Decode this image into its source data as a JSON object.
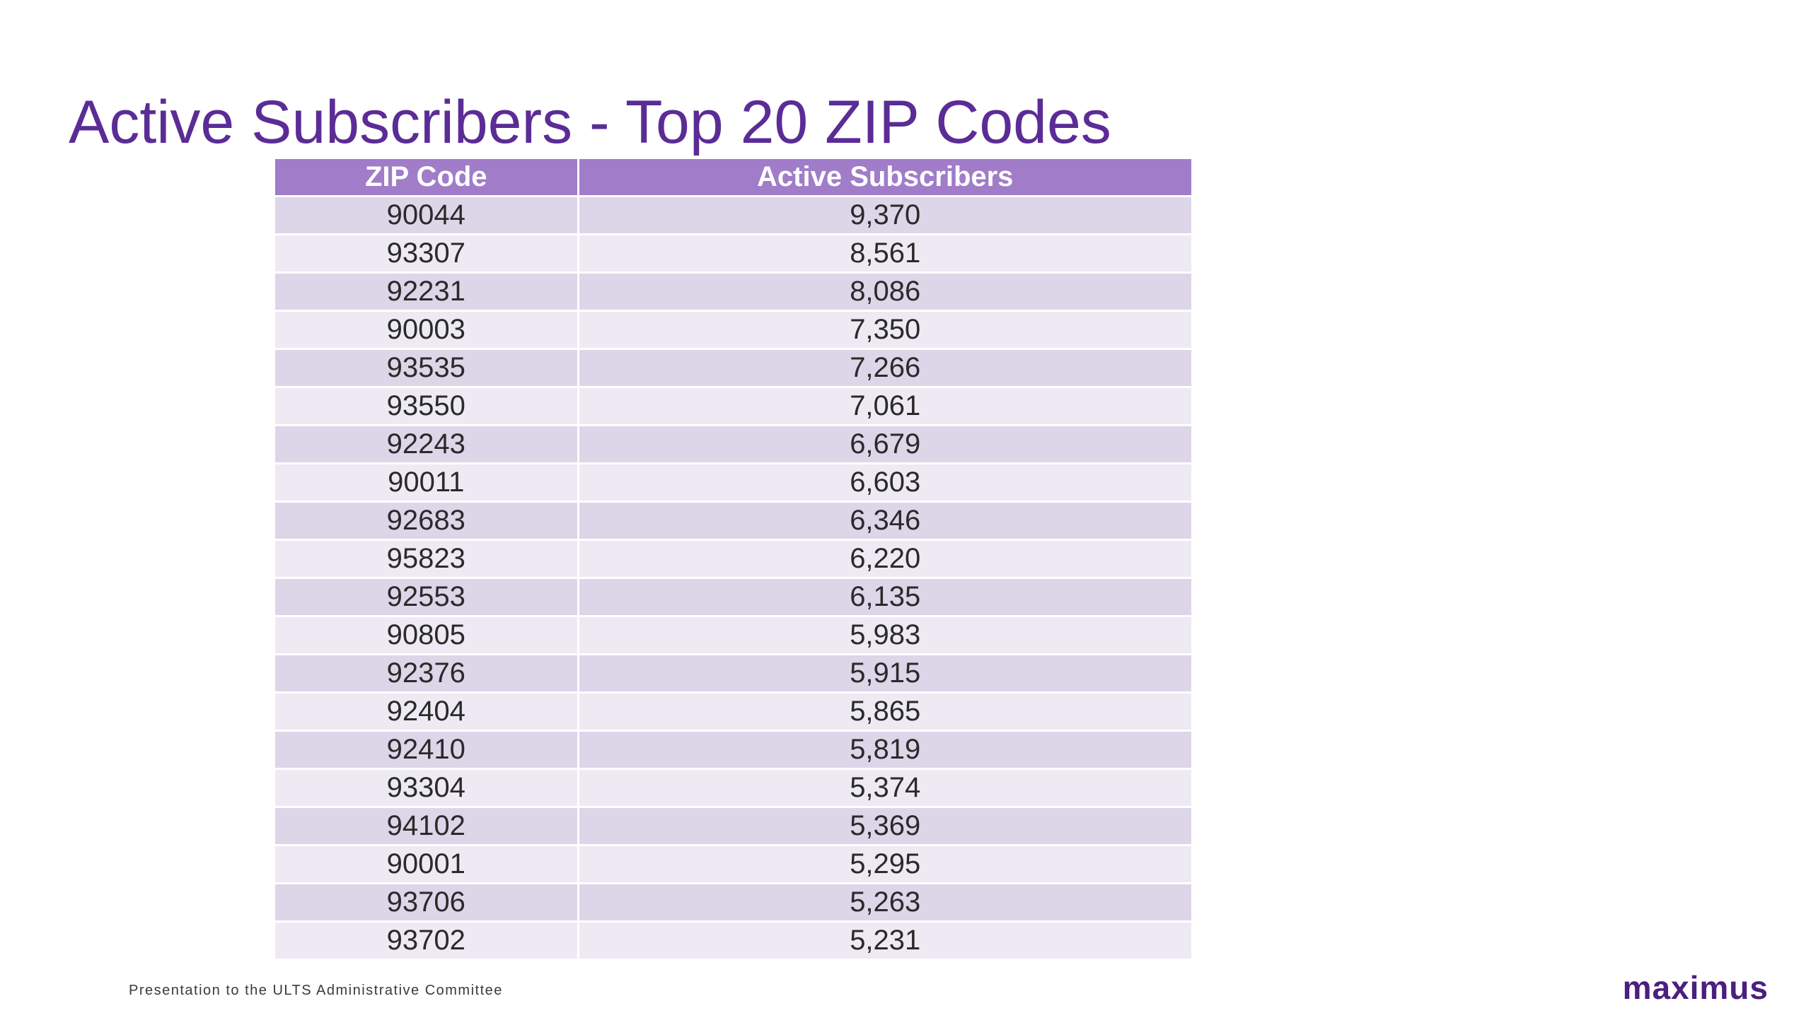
{
  "title": "Active Subscribers - Top 20 ZIP Codes",
  "table": {
    "headers": [
      "ZIP Code",
      "Active Subscribers"
    ],
    "rows": [
      [
        "90044",
        "9,370"
      ],
      [
        "93307",
        "8,561"
      ],
      [
        "92231",
        "8,086"
      ],
      [
        "90003",
        "7,350"
      ],
      [
        "93535",
        "7,266"
      ],
      [
        "93550",
        "7,061"
      ],
      [
        "92243",
        "6,679"
      ],
      [
        "90011",
        "6,603"
      ],
      [
        "92683",
        "6,346"
      ],
      [
        "95823",
        "6,220"
      ],
      [
        "92553",
        "6,135"
      ],
      [
        "90805",
        "5,983"
      ],
      [
        "92376",
        "5,915"
      ],
      [
        "92404",
        "5,865"
      ],
      [
        "92410",
        "5,819"
      ],
      [
        "93304",
        "5,374"
      ],
      [
        "94102",
        "5,369"
      ],
      [
        "90001",
        "5,295"
      ],
      [
        "93706",
        "5,263"
      ],
      [
        "93702",
        "5,231"
      ]
    ]
  },
  "footer": {
    "text": "Presentation to the ULTS Administrative Committee",
    "logo": "maximus"
  },
  "colors": {
    "title": "#5b2c96",
    "header_bg": "#a07cc9",
    "row_odd": "#ddd5e8",
    "row_even": "#eeeaf3",
    "logo": "#4b1f7e"
  }
}
